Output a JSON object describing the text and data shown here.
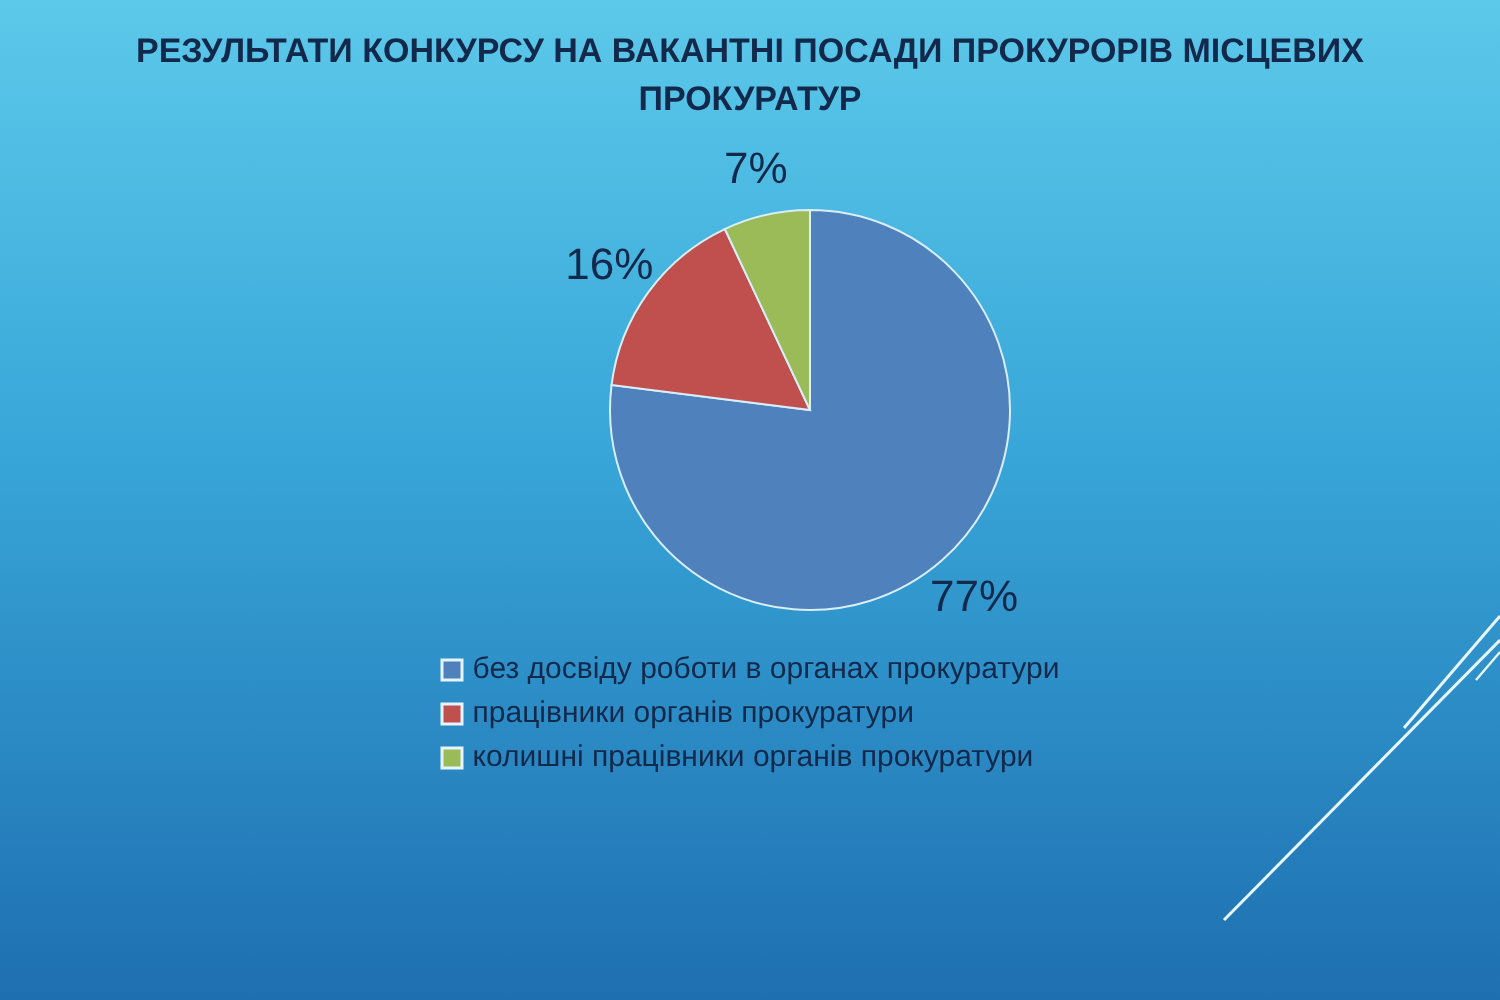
{
  "chart_data": {
    "type": "pie",
    "title": "РЕЗУЛЬТАТИ КОНКУРСУ НА ВАКАНТНІ ПОСАДИ ПРОКУРОРІВ МІСЦЕВИХ ПРОКУРАТУР",
    "categories": [
      "без досвіду роботи в органах прокуратури",
      "працівники органів прокуратури",
      "колишні працівники органів прокуратури"
    ],
    "values": [
      77,
      16,
      7
    ],
    "colors": [
      "#4f81bd",
      "#c0504d",
      "#9bbb59"
    ],
    "value_labels": [
      "77%",
      "16%",
      "7%"
    ],
    "legend": "bottom"
  }
}
